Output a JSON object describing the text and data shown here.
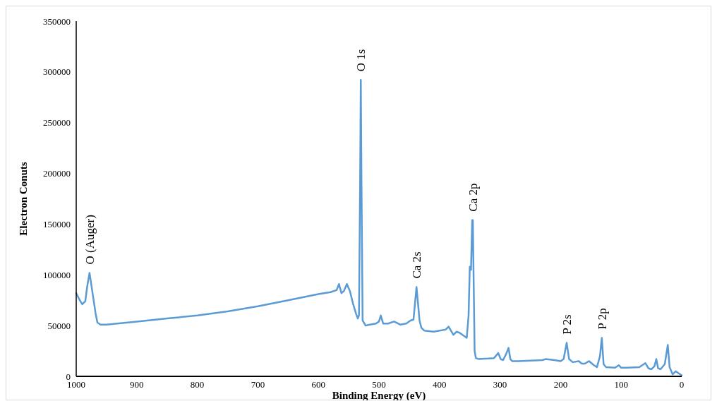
{
  "chart_data": {
    "type": "line",
    "xlabel": "Binding Energy (eV)",
    "ylabel": "Electron Conuts",
    "xlim": [
      1000,
      0
    ],
    "xticks": [
      1000,
      900,
      800,
      700,
      600,
      500,
      400,
      300,
      200,
      100,
      0
    ],
    "ylim": [
      0,
      350000
    ],
    "yticks": [
      0,
      50000,
      100000,
      150000,
      200000,
      250000,
      300000,
      350000
    ],
    "marker": "none",
    "line_style": "solid",
    "series": [
      {
        "color": "#5b9bd5",
        "x": [
          1000,
          995,
          990,
          985,
          982,
          978,
          975,
          972,
          968,
          965,
          960,
          950,
          900,
          850,
          800,
          750,
          700,
          650,
          600,
          580,
          570,
          566,
          562,
          558,
          553,
          548,
          543,
          538,
          535,
          533,
          531,
          530,
          529,
          527,
          522,
          515,
          505,
          500,
          497,
          493,
          485,
          475,
          465,
          455,
          448,
          443,
          440,
          438,
          436,
          433,
          430,
          425,
          410,
          400,
          390,
          385,
          380,
          377,
          372,
          367,
          360,
          355,
          352,
          350,
          348,
          346,
          345,
          344,
          342,
          340,
          335,
          320,
          310,
          303,
          299,
          295,
          290,
          286,
          283,
          280,
          270,
          250,
          230,
          225,
          210,
          200,
          195,
          190,
          186,
          180,
          170,
          165,
          160,
          153,
          145,
          140,
          135,
          132,
          129,
          125,
          110,
          104,
          100,
          90,
          70,
          60,
          55,
          50,
          45,
          42,
          39,
          35,
          28,
          23,
          20,
          15,
          10,
          5,
          0
        ],
        "values": [
          82000,
          76000,
          71000,
          74000,
          88000,
          102000,
          90000,
          78000,
          62000,
          53000,
          51000,
          51000,
          54000,
          57000,
          60000,
          64000,
          69000,
          75000,
          81000,
          83000,
          85000,
          91000,
          82000,
          84000,
          91000,
          84000,
          72000,
          62000,
          57000,
          60000,
          200000,
          292000,
          200000,
          55000,
          50000,
          51000,
          52000,
          54000,
          60000,
          52000,
          52000,
          54000,
          51000,
          52000,
          55000,
          56000,
          75000,
          88000,
          75000,
          55000,
          48000,
          45000,
          44000,
          45000,
          46000,
          49000,
          44000,
          41000,
          44000,
          43000,
          40000,
          38000,
          60000,
          108000,
          105000,
          154000,
          154000,
          110000,
          25000,
          18000,
          17000,
          17500,
          18000,
          23000,
          17000,
          16000,
          22000,
          28000,
          17000,
          15000,
          15000,
          15500,
          16000,
          17000,
          16000,
          15000,
          17000,
          33000,
          17000,
          14000,
          15000,
          12500,
          12500,
          15000,
          11000,
          9000,
          20000,
          38000,
          12000,
          9000,
          8500,
          11000,
          8500,
          8500,
          9000,
          13000,
          8000,
          7000,
          10000,
          17000,
          8000,
          7000,
          12000,
          31000,
          9000,
          2000,
          5000,
          3000,
          1000
        ]
      }
    ],
    "annotations": [
      {
        "text": "O (Auger)",
        "x": 978,
        "y": 102000
      },
      {
        "text": "O 1s",
        "x": 530,
        "y": 292000
      },
      {
        "text": "Ca 2s",
        "x": 438,
        "y": 88000
      },
      {
        "text": "Ca 2p",
        "x": 345,
        "y": 154000
      },
      {
        "text": "P 2s",
        "x": 190,
        "y": 33000
      },
      {
        "text": "P 2p",
        "x": 132,
        "y": 38000
      }
    ]
  }
}
